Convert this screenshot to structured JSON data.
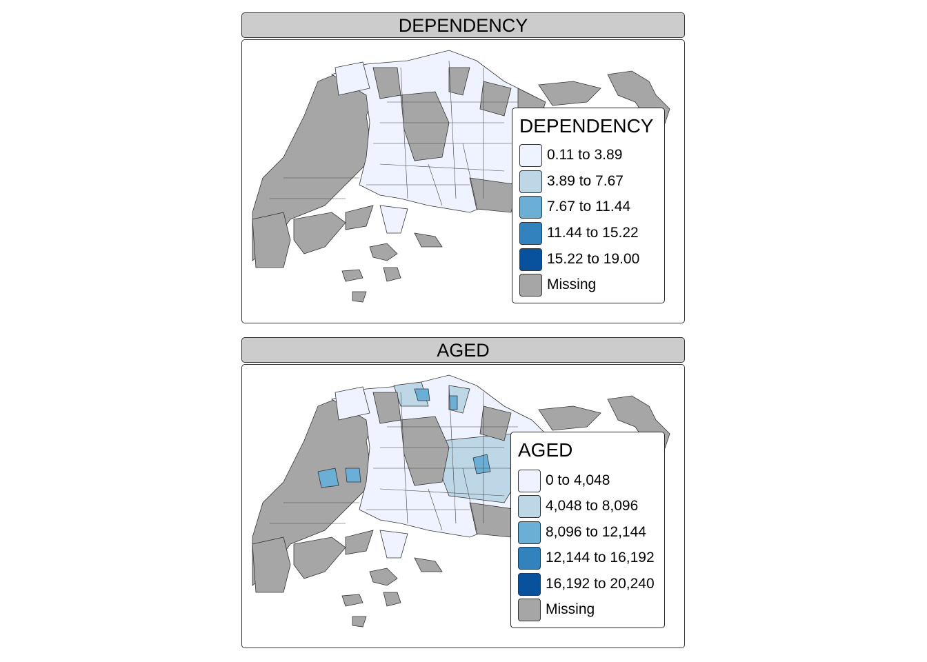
{
  "panels": [
    {
      "strip_title": "DEPENDENCY",
      "legend": {
        "title": "DEPENDENCY",
        "items": [
          {
            "label": "0.11 to 3.89",
            "color": "#eff3ff"
          },
          {
            "label": "3.89 to 7.67",
            "color": "#bdd7e7"
          },
          {
            "label": "7.67 to 11.44",
            "color": "#6baed6"
          },
          {
            "label": "11.44 to 15.22",
            "color": "#3182bd"
          },
          {
            "label": "15.22 to 19.00",
            "color": "#08519c"
          },
          {
            "label": "Missing",
            "color": "#a6a6a6"
          }
        ]
      }
    },
    {
      "strip_title": "AGED",
      "legend": {
        "title": "AGED",
        "items": [
          {
            "label": "0 to 4,048",
            "color": "#eff3ff"
          },
          {
            "label": "4,048 to 8,096",
            "color": "#bdd7e7"
          },
          {
            "label": "8,096 to 12,144",
            "color": "#6baed6"
          },
          {
            "label": "12,144 to 16,192",
            "color": "#3182bd"
          },
          {
            "label": "16,192 to 20,240",
            "color": "#08519c"
          },
          {
            "label": "Missing",
            "color": "#a6a6a6"
          }
        ]
      }
    }
  ]
}
